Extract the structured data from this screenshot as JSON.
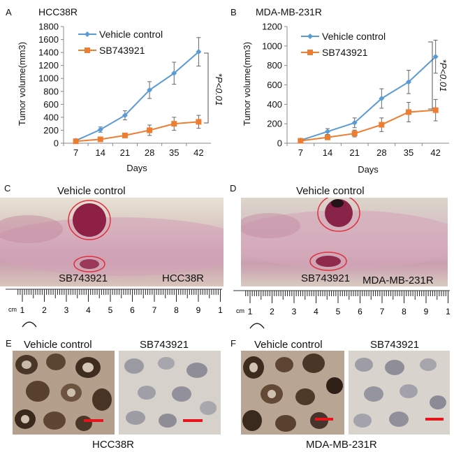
{
  "panels": {
    "a": "A",
    "b": "B",
    "c": "C",
    "d": "D",
    "e": "E",
    "f": "F"
  },
  "chart_data": [
    {
      "type": "line",
      "title": "HCC38R",
      "xlabel": "Days",
      "ylabel": "Tumor volume(mm3)",
      "categories": [
        "7",
        "14",
        "21",
        "28",
        "35",
        "42"
      ],
      "yticks": [
        "0",
        "200",
        "400",
        "600",
        "800",
        "1000",
        "1200",
        "1400",
        "1600",
        "1800"
      ],
      "ylim": [
        0,
        1800
      ],
      "series": [
        {
          "name": "Vehicle control",
          "color": "#5b9bd5",
          "values": [
            40,
            210,
            430,
            820,
            1080,
            1410
          ],
          "errors": [
            15,
            40,
            70,
            130,
            170,
            220
          ]
        },
        {
          "name": "SB743921",
          "color": "#ed7d31",
          "values": [
            30,
            60,
            120,
            200,
            300,
            330
          ],
          "errors": [
            10,
            20,
            35,
            80,
            100,
            100
          ]
        }
      ],
      "annotation": "*P<0.01"
    },
    {
      "type": "line",
      "title": "MDA-MB-231R",
      "xlabel": "Days",
      "ylabel": "Tumor volume(mm3)",
      "categories": [
        "7",
        "14",
        "21",
        "28",
        "35",
        "42"
      ],
      "yticks": [
        "0",
        "200",
        "400",
        "600",
        "800",
        "1000",
        "1200"
      ],
      "ylim": [
        0,
        1200
      ],
      "series": [
        {
          "name": "Vehicle control",
          "color": "#5b9bd5",
          "values": [
            30,
            120,
            210,
            460,
            630,
            890
          ],
          "errors": [
            10,
            30,
            50,
            100,
            120,
            170
          ]
        },
        {
          "name": "SB743921",
          "color": "#ed7d31",
          "values": [
            25,
            60,
            100,
            190,
            320,
            340
          ],
          "errors": [
            10,
            20,
            35,
            70,
            100,
            110
          ]
        }
      ],
      "annotation": "*P<0.01"
    }
  ],
  "photos": {
    "c": {
      "top": "Vehicle control",
      "bottom": "SB743921",
      "cell": "HCC38R"
    },
    "d": {
      "top": "Vehicle control",
      "bottom": "SB743921",
      "cell": "MDA-MB-231R"
    }
  },
  "ruler": {
    "unit": "cm",
    "numbers": [
      "1",
      "2",
      "3",
      "4",
      "5",
      "6",
      "7",
      "8",
      "9",
      "1"
    ]
  },
  "ihc": {
    "e": {
      "left": "Vehicle control",
      "right": "SB743921",
      "cell": "HCC38R"
    },
    "f": {
      "left": "Vehicle control",
      "right": "SB743921",
      "cell": "MDA-MB-231R"
    }
  },
  "colors": {
    "vehicle": "#5b9bd5",
    "sb": "#ed7d31",
    "scale": "#e8141c"
  }
}
